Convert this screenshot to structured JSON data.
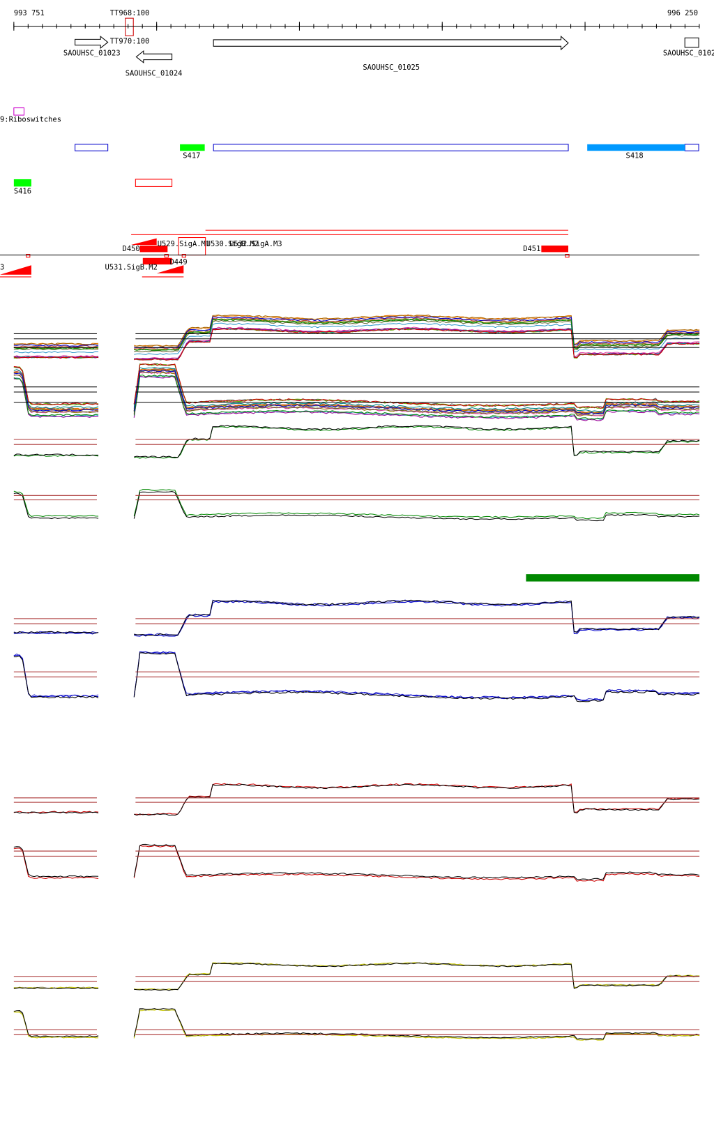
{
  "axis": {
    "start": "993 751",
    "end": "996 250"
  },
  "genes": [
    {
      "label": "SAOUHSC_01023"
    },
    {
      "label": "SAOUHSC_01024"
    },
    {
      "label": "SAOUHSC_01025"
    },
    {
      "label": "SAOUHSC_0102"
    }
  ],
  "terminators": [
    {
      "label": "TT968:100"
    },
    {
      "label": "TT970:100"
    }
  ],
  "riboswitch": {
    "label": "9:Riboswitches"
  },
  "segments": [
    {
      "label": "S417"
    },
    {
      "label": "S418"
    },
    {
      "label": "S416"
    }
  ],
  "promoters": [
    {
      "label": "D450"
    },
    {
      "label": "U529.SigA.M1"
    },
    {
      "label": "U530.SigB.M2"
    },
    {
      "label": "U532.SigA.M3"
    },
    {
      "label": "D449"
    },
    {
      "label": "U531.SigB.M2"
    },
    {
      "label": "D451"
    },
    {
      "label": "3"
    }
  ]
}
